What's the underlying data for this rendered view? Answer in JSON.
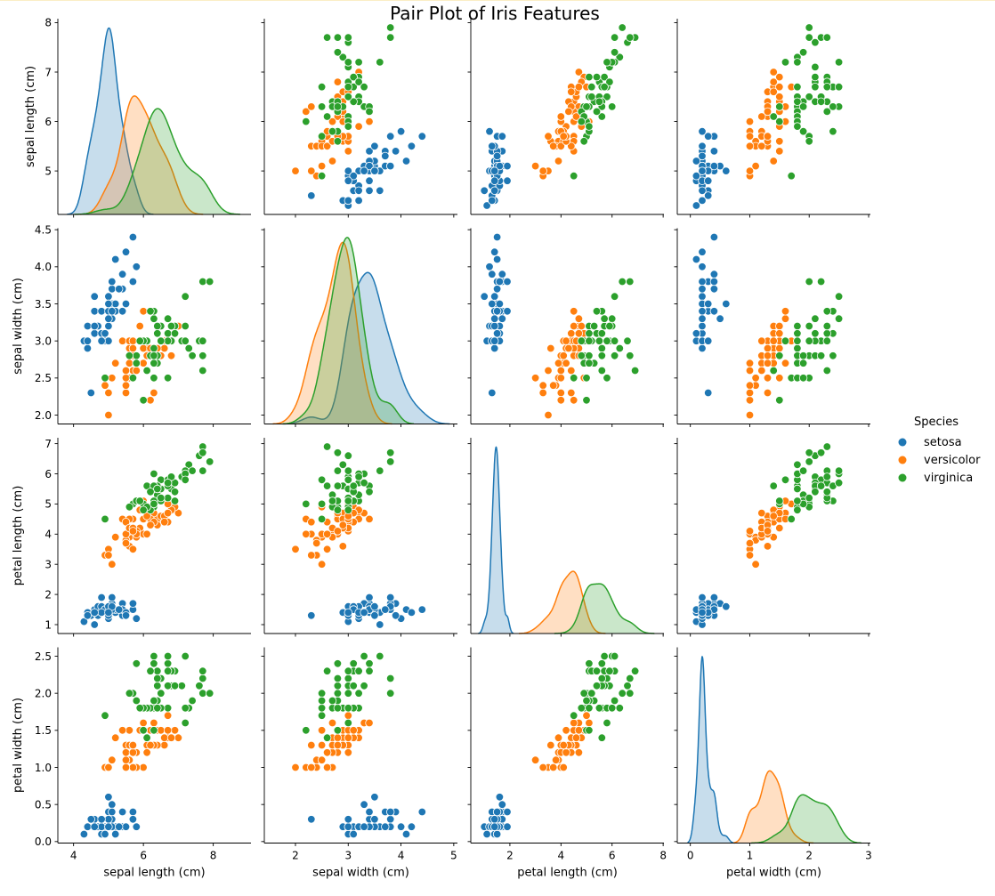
{
  "chart_data": {
    "type": "scatter",
    "kind": "pairplot",
    "title": "Pair Plot of Iris Features",
    "diagonal_type": "kde",
    "grid": false,
    "legend": {
      "title": "Species",
      "placement": "right",
      "entries": [
        "setosa",
        "versicolor",
        "virginica"
      ]
    },
    "colors": {
      "setosa": "#1f77b4",
      "versicolor": "#ff7f0e",
      "virginica": "#2ca02c"
    },
    "variables": [
      "sepal length (cm)",
      "sepal width (cm)",
      "petal length (cm)",
      "petal width (cm)"
    ],
    "x_ranges": [
      [
        3.55,
        9.08
      ],
      [
        1.41,
        5.07
      ],
      [
        0.47,
        8.03
      ],
      [
        -0.22,
        3.03
      ]
    ],
    "y_ranges": [
      [
        4.12,
        8.08
      ],
      [
        1.88,
        4.52
      ],
      [
        0.705,
        7.195
      ],
      [
        -0.02,
        2.62
      ]
    ],
    "x_ticks": [
      [
        "4",
        "6",
        "8"
      ],
      [
        "2",
        "3",
        "4",
        "5"
      ],
      [
        "2",
        "4",
        "6",
        "8"
      ],
      [
        "0",
        "1",
        "2",
        "3"
      ]
    ],
    "y_ticks": [
      [
        "5",
        "6",
        "7",
        "8"
      ],
      [
        "2.0",
        "2.5",
        "3.0",
        "3.5",
        "4.0",
        "4.5"
      ],
      [
        "1",
        "2",
        "3",
        "4",
        "5",
        "6",
        "7"
      ],
      [
        "0.0",
        "0.5",
        "1.0",
        "1.5",
        "2.0",
        "2.5"
      ]
    ],
    "data": {
      "setosa": [
        [
          5.1,
          3.5,
          1.4,
          0.2
        ],
        [
          4.9,
          3.0,
          1.4,
          0.2
        ],
        [
          4.7,
          3.2,
          1.3,
          0.2
        ],
        [
          4.6,
          3.1,
          1.5,
          0.2
        ],
        [
          5.0,
          3.6,
          1.4,
          0.2
        ],
        [
          5.4,
          3.9,
          1.7,
          0.4
        ],
        [
          4.6,
          3.4,
          1.4,
          0.3
        ],
        [
          5.0,
          3.4,
          1.5,
          0.2
        ],
        [
          4.4,
          2.9,
          1.4,
          0.2
        ],
        [
          4.9,
          3.1,
          1.5,
          0.1
        ],
        [
          5.4,
          3.7,
          1.5,
          0.2
        ],
        [
          4.8,
          3.4,
          1.6,
          0.2
        ],
        [
          4.8,
          3.0,
          1.4,
          0.1
        ],
        [
          4.3,
          3.0,
          1.1,
          0.1
        ],
        [
          5.8,
          4.0,
          1.2,
          0.2
        ],
        [
          5.7,
          4.4,
          1.5,
          0.4
        ],
        [
          5.4,
          3.9,
          1.3,
          0.4
        ],
        [
          5.1,
          3.5,
          1.4,
          0.3
        ],
        [
          5.7,
          3.8,
          1.7,
          0.3
        ],
        [
          5.1,
          3.8,
          1.5,
          0.3
        ],
        [
          5.4,
          3.4,
          1.7,
          0.2
        ],
        [
          5.1,
          3.7,
          1.5,
          0.4
        ],
        [
          4.6,
          3.6,
          1.0,
          0.2
        ],
        [
          5.1,
          3.3,
          1.7,
          0.5
        ],
        [
          4.8,
          3.4,
          1.9,
          0.2
        ],
        [
          5.0,
          3.0,
          1.6,
          0.2
        ],
        [
          5.0,
          3.4,
          1.6,
          0.4
        ],
        [
          5.2,
          3.5,
          1.5,
          0.2
        ],
        [
          5.2,
          3.4,
          1.4,
          0.2
        ],
        [
          4.7,
          3.2,
          1.6,
          0.2
        ],
        [
          4.8,
          3.1,
          1.6,
          0.2
        ],
        [
          5.4,
          3.4,
          1.5,
          0.4
        ],
        [
          5.2,
          4.1,
          1.5,
          0.1
        ],
        [
          5.5,
          4.2,
          1.4,
          0.2
        ],
        [
          4.9,
          3.1,
          1.5,
          0.1
        ],
        [
          5.0,
          3.2,
          1.2,
          0.2
        ],
        [
          5.5,
          3.5,
          1.3,
          0.2
        ],
        [
          4.9,
          3.1,
          1.5,
          0.1
        ],
        [
          4.4,
          3.0,
          1.3,
          0.2
        ],
        [
          5.1,
          3.4,
          1.5,
          0.2
        ],
        [
          5.0,
          3.5,
          1.3,
          0.3
        ],
        [
          4.5,
          2.3,
          1.3,
          0.3
        ],
        [
          4.4,
          3.2,
          1.3,
          0.2
        ],
        [
          5.0,
          3.5,
          1.6,
          0.6
        ],
        [
          5.1,
          3.8,
          1.9,
          0.4
        ],
        [
          4.8,
          3.0,
          1.4,
          0.3
        ],
        [
          5.1,
          3.8,
          1.6,
          0.2
        ],
        [
          4.6,
          3.2,
          1.4,
          0.2
        ],
        [
          5.3,
          3.7,
          1.5,
          0.2
        ],
        [
          5.0,
          3.3,
          1.4,
          0.2
        ]
      ],
      "versicolor": [
        [
          7.0,
          3.2,
          4.7,
          1.4
        ],
        [
          6.4,
          3.2,
          4.5,
          1.5
        ],
        [
          6.9,
          3.1,
          4.9,
          1.5
        ],
        [
          5.5,
          2.3,
          4.0,
          1.3
        ],
        [
          6.5,
          2.8,
          4.6,
          1.5
        ],
        [
          5.7,
          2.8,
          4.5,
          1.3
        ],
        [
          6.3,
          3.3,
          4.7,
          1.6
        ],
        [
          4.9,
          2.4,
          3.3,
          1.0
        ],
        [
          6.6,
          2.9,
          4.6,
          1.3
        ],
        [
          5.2,
          2.7,
          3.9,
          1.4
        ],
        [
          5.0,
          2.0,
          3.5,
          1.0
        ],
        [
          5.9,
          3.0,
          4.2,
          1.5
        ],
        [
          6.0,
          2.2,
          4.0,
          1.0
        ],
        [
          6.1,
          2.9,
          4.7,
          1.4
        ],
        [
          5.6,
          2.9,
          3.6,
          1.3
        ],
        [
          6.7,
          3.1,
          4.4,
          1.4
        ],
        [
          5.6,
          3.0,
          4.5,
          1.5
        ],
        [
          5.8,
          2.7,
          4.1,
          1.0
        ],
        [
          6.2,
          2.2,
          4.5,
          1.5
        ],
        [
          5.6,
          2.5,
          3.9,
          1.1
        ],
        [
          5.9,
          3.2,
          4.8,
          1.8
        ],
        [
          6.1,
          2.8,
          4.0,
          1.3
        ],
        [
          6.3,
          2.5,
          4.9,
          1.5
        ],
        [
          6.1,
          2.8,
          4.7,
          1.2
        ],
        [
          6.4,
          2.9,
          4.3,
          1.3
        ],
        [
          6.6,
          3.0,
          4.4,
          1.4
        ],
        [
          6.8,
          2.8,
          4.8,
          1.4
        ],
        [
          6.7,
          3.0,
          5.0,
          1.7
        ],
        [
          6.0,
          2.9,
          4.5,
          1.5
        ],
        [
          5.7,
          2.6,
          3.5,
          1.0
        ],
        [
          5.5,
          2.4,
          3.8,
          1.1
        ],
        [
          5.5,
          2.4,
          3.7,
          1.0
        ],
        [
          5.8,
          2.7,
          3.9,
          1.2
        ],
        [
          6.0,
          2.7,
          5.1,
          1.6
        ],
        [
          5.4,
          3.0,
          4.5,
          1.5
        ],
        [
          6.0,
          3.4,
          4.5,
          1.6
        ],
        [
          6.7,
          3.1,
          4.7,
          1.5
        ],
        [
          6.3,
          2.3,
          4.4,
          1.3
        ],
        [
          5.6,
          3.0,
          4.1,
          1.3
        ],
        [
          5.5,
          2.5,
          4.0,
          1.3
        ],
        [
          5.5,
          2.6,
          4.4,
          1.2
        ],
        [
          6.1,
          3.0,
          4.6,
          1.4
        ],
        [
          5.8,
          2.6,
          4.0,
          1.2
        ],
        [
          5.0,
          2.3,
          3.3,
          1.0
        ],
        [
          5.6,
          2.7,
          4.2,
          1.3
        ],
        [
          5.7,
          3.0,
          4.2,
          1.2
        ],
        [
          5.7,
          2.9,
          4.2,
          1.3
        ],
        [
          6.2,
          2.9,
          4.3,
          1.3
        ],
        [
          5.1,
          2.5,
          3.0,
          1.1
        ],
        [
          5.7,
          2.8,
          4.1,
          1.3
        ]
      ],
      "virginica": [
        [
          6.3,
          3.3,
          6.0,
          2.5
        ],
        [
          5.8,
          2.7,
          5.1,
          1.9
        ],
        [
          7.1,
          3.0,
          5.9,
          2.1
        ],
        [
          6.3,
          2.9,
          5.6,
          1.8
        ],
        [
          6.5,
          3.0,
          5.8,
          2.2
        ],
        [
          7.6,
          3.0,
          6.6,
          2.1
        ],
        [
          4.9,
          2.5,
          4.5,
          1.7
        ],
        [
          7.3,
          2.9,
          6.3,
          1.8
        ],
        [
          6.7,
          2.5,
          5.8,
          1.8
        ],
        [
          7.2,
          3.6,
          6.1,
          2.5
        ],
        [
          6.5,
          3.2,
          5.1,
          2.0
        ],
        [
          6.4,
          2.7,
          5.3,
          1.9
        ],
        [
          6.8,
          3.0,
          5.5,
          2.1
        ],
        [
          5.7,
          2.5,
          5.0,
          2.0
        ],
        [
          5.8,
          2.8,
          5.1,
          2.4
        ],
        [
          6.4,
          3.2,
          5.3,
          2.3
        ],
        [
          6.5,
          3.0,
          5.5,
          1.8
        ],
        [
          7.7,
          3.8,
          6.7,
          2.2
        ],
        [
          7.7,
          2.6,
          6.9,
          2.3
        ],
        [
          6.0,
          2.2,
          5.0,
          1.5
        ],
        [
          6.9,
          3.2,
          5.7,
          2.3
        ],
        [
          5.6,
          2.8,
          4.9,
          2.0
        ],
        [
          7.7,
          2.8,
          6.7,
          2.0
        ],
        [
          6.3,
          2.7,
          4.9,
          1.8
        ],
        [
          6.7,
          3.3,
          5.7,
          2.1
        ],
        [
          7.2,
          3.2,
          6.0,
          1.8
        ],
        [
          6.2,
          2.8,
          4.8,
          1.8
        ],
        [
          6.1,
          3.0,
          4.9,
          1.8
        ],
        [
          6.4,
          2.8,
          5.6,
          2.1
        ],
        [
          7.2,
          3.0,
          5.8,
          1.6
        ],
        [
          7.4,
          2.8,
          6.1,
          1.9
        ],
        [
          7.9,
          3.8,
          6.4,
          2.0
        ],
        [
          6.4,
          2.8,
          5.6,
          2.2
        ],
        [
          6.3,
          2.8,
          5.1,
          1.5
        ],
        [
          6.1,
          2.6,
          5.6,
          1.4
        ],
        [
          7.7,
          3.0,
          6.1,
          2.3
        ],
        [
          6.3,
          3.4,
          5.6,
          2.4
        ],
        [
          6.4,
          3.1,
          5.5,
          1.8
        ],
        [
          6.0,
          3.0,
          4.8,
          1.8
        ],
        [
          6.9,
          3.1,
          5.4,
          2.1
        ],
        [
          6.7,
          3.1,
          5.6,
          2.4
        ],
        [
          6.9,
          3.1,
          5.1,
          2.3
        ],
        [
          5.8,
          2.7,
          5.1,
          1.9
        ],
        [
          6.8,
          3.2,
          5.9,
          2.3
        ],
        [
          6.7,
          3.3,
          5.7,
          2.5
        ],
        [
          6.7,
          3.0,
          5.2,
          2.3
        ],
        [
          6.3,
          2.5,
          5.0,
          1.9
        ],
        [
          6.5,
          3.0,
          5.2,
          2.0
        ],
        [
          6.2,
          3.4,
          5.4,
          2.3
        ],
        [
          5.9,
          3.0,
          5.1,
          1.8
        ]
      ]
    }
  }
}
